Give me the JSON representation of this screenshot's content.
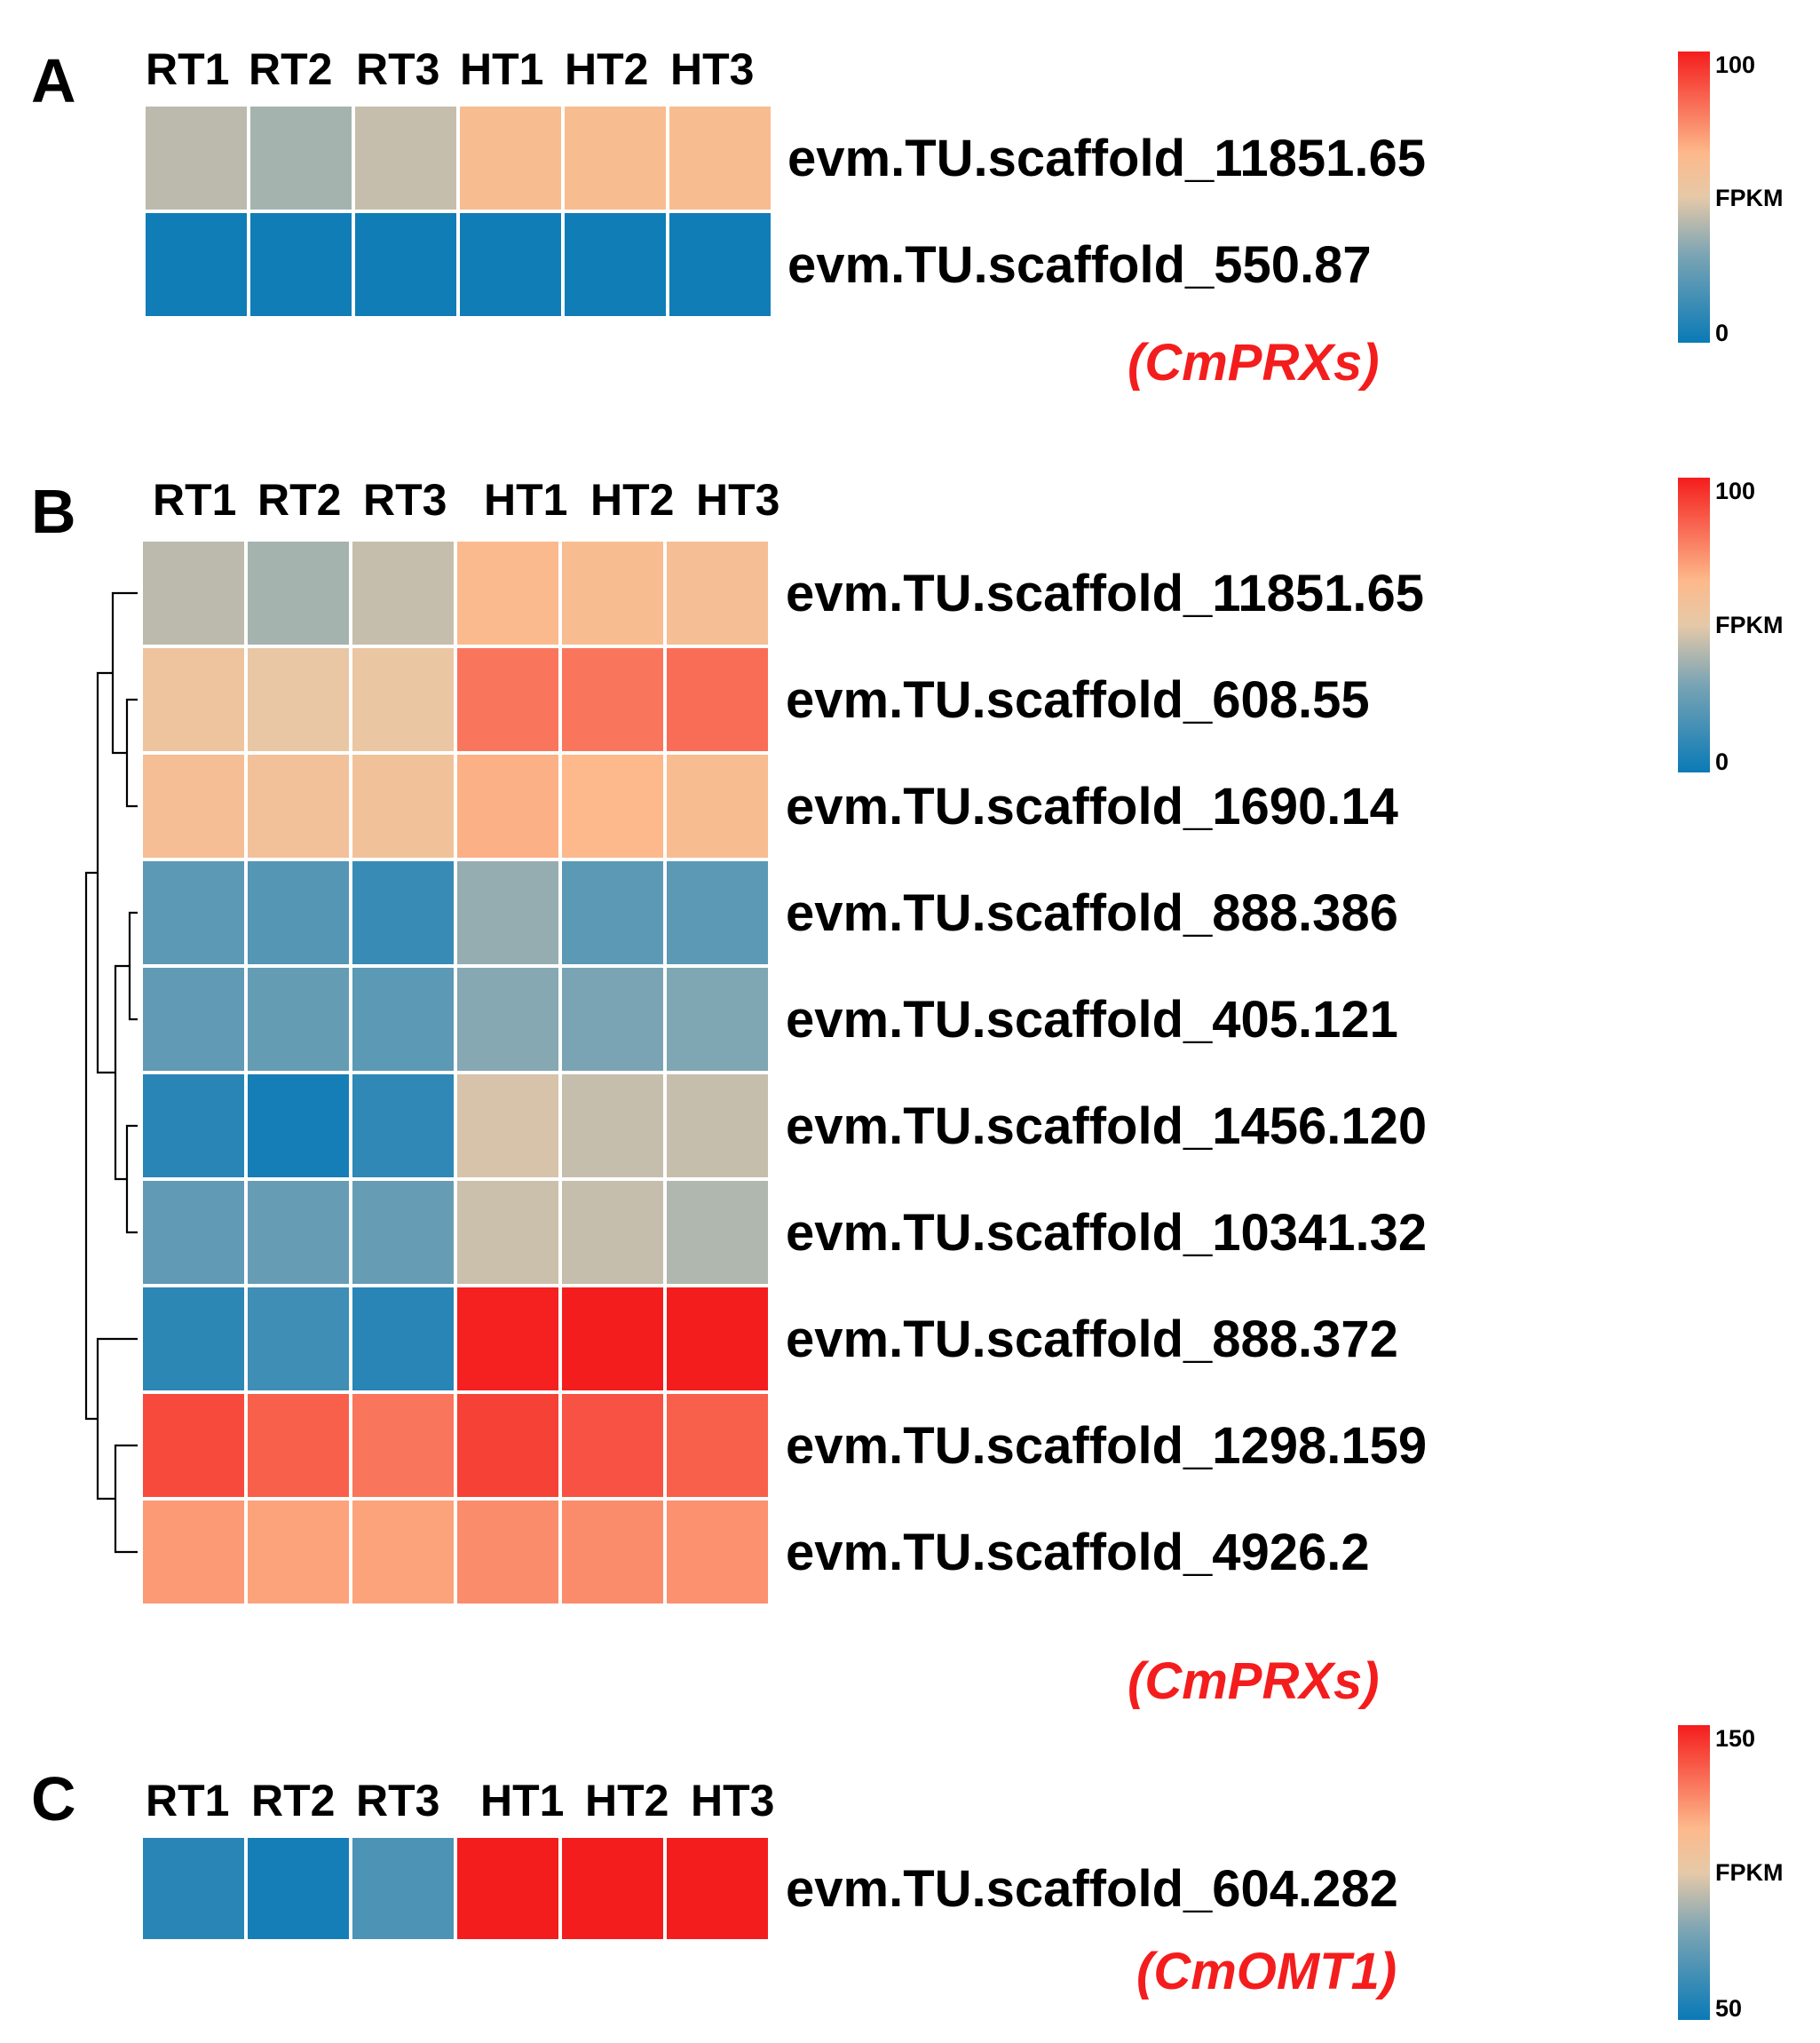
{
  "figure": {
    "colors": {
      "low": "#0a7ab6",
      "mid": "#fdb98b",
      "high": "#f41d1d",
      "family_label": "#f41d1d"
    }
  },
  "chart_data": [
    {
      "type": "heatmap",
      "panel": "A",
      "columns": [
        "RT1",
        "RT2",
        "RT3",
        "HT1",
        "HT2",
        "HT3"
      ],
      "rows": [
        "evm.TU.scaffold_11851.65",
        "evm.TU.scaffold_550.87"
      ],
      "values": [
        [
          42,
          38,
          44,
          62,
          62,
          62
        ],
        [
          2,
          2,
          2,
          2,
          2,
          2
        ]
      ],
      "legend": {
        "title": "FPKM",
        "min": 0,
        "max": 100,
        "min_label": "0",
        "max_label": "100"
      },
      "family_label": "(CmPRXs)",
      "dendrogram": false
    },
    {
      "type": "heatmap",
      "panel": "B",
      "columns": [
        "RT1",
        "RT2",
        "RT3",
        "HT1",
        "HT2",
        "HT3"
      ],
      "rows": [
        "evm.TU.scaffold_11851.65",
        "evm.TU.scaffold_608.55",
        "evm.TU.scaffold_1690.14",
        "evm.TU.scaffold_888.386",
        "evm.TU.scaffold_405.121",
        "evm.TU.scaffold_1456.120",
        "evm.TU.scaffold_10341.32",
        "evm.TU.scaffold_888.372",
        "evm.TU.scaffold_1298.159",
        "evm.TU.scaffold_4926.2"
      ],
      "values": [
        [
          42,
          38,
          44,
          64,
          62,
          60
        ],
        [
          55,
          52,
          53,
          80,
          80,
          82
        ],
        [
          60,
          58,
          57,
          67,
          65,
          62
        ],
        [
          22,
          20,
          12,
          35,
          22,
          22
        ],
        [
          23,
          24,
          22,
          32,
          30,
          31
        ],
        [
          8,
          3,
          10,
          47,
          44,
          44
        ],
        [
          23,
          25,
          25,
          45,
          44,
          40
        ],
        [
          9,
          14,
          8,
          99,
          100,
          100
        ],
        [
          90,
          85,
          80,
          92,
          88,
          85
        ],
        [
          72,
          70,
          70,
          75,
          75,
          74
        ]
      ],
      "legend": {
        "title": "FPKM",
        "min": 0,
        "max": 100,
        "min_label": "0",
        "max_label": "100"
      },
      "family_label": "(CmPRXs)",
      "dendrogram": true
    },
    {
      "type": "heatmap",
      "panel": "C",
      "columns": [
        "RT1",
        "RT2",
        "RT3",
        "HT1",
        "HT2",
        "HT3"
      ],
      "rows": [
        "evm.TU.scaffold_604.282"
      ],
      "values": [
        [
          58,
          53,
          68,
          150,
          150,
          150
        ]
      ],
      "legend": {
        "title": "FPKM",
        "min": 50,
        "max": 150,
        "min_label": "50",
        "max_label": "150"
      },
      "family_label": "(CmOMT1)",
      "dendrogram": false
    }
  ]
}
